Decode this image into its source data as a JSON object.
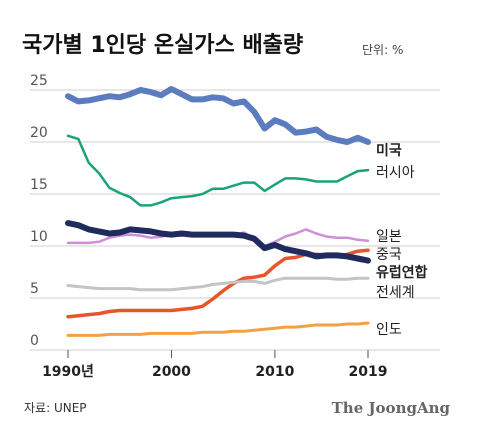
{
  "chart_data": {
    "type": "line",
    "title": "국가별 1인당 온실가스 배출량",
    "unit_label": "단위: %",
    "x_tick_labels": [
      "1990년",
      "2000",
      "2010",
      "2019"
    ],
    "x_tick_values": [
      1990,
      2000,
      2010,
      2019
    ],
    "y_tick_labels": [
      "0",
      "5",
      "10",
      "15",
      "20",
      "25"
    ],
    "y_tick_values": [
      0,
      5,
      10,
      15,
      20,
      25
    ],
    "xlim": [
      1990,
      2019
    ],
    "ylim": [
      0,
      25
    ],
    "grid": true,
    "years": [
      1990,
      1991,
      1992,
      1993,
      1994,
      1995,
      1996,
      1997,
      1998,
      1999,
      2000,
      2001,
      2002,
      2003,
      2004,
      2005,
      2006,
      2007,
      2008,
      2009,
      2010,
      2011,
      2012,
      2013,
      2014,
      2015,
      2016,
      2017,
      2018,
      2019
    ],
    "series": [
      {
        "name": "미국",
        "color": "#5b7dbf",
        "bold": true,
        "width": 6,
        "values": [
          24.4,
          23.9,
          24.0,
          24.2,
          24.4,
          24.3,
          24.6,
          25.0,
          24.8,
          24.5,
          25.1,
          24.6,
          24.1,
          24.1,
          24.3,
          24.2,
          23.7,
          23.9,
          22.9,
          21.3,
          22.1,
          21.7,
          20.9,
          21.0,
          21.2,
          20.5,
          20.2,
          20.0,
          20.4,
          20.0
        ]
      },
      {
        "name": "러시아",
        "color": "#1aa37a",
        "bold": false,
        "width": 2.5,
        "values": [
          20.6,
          20.3,
          18.0,
          17.0,
          15.6,
          15.1,
          14.7,
          13.9,
          13.9,
          14.2,
          14.6,
          14.7,
          14.8,
          15.0,
          15.5,
          15.5,
          15.8,
          16.1,
          16.1,
          15.3,
          15.9,
          16.5,
          16.5,
          16.4,
          16.2,
          16.2,
          16.2,
          16.7,
          17.2,
          17.3
        ]
      },
      {
        "name": "일본",
        "color": "#cd90d6",
        "bold": false,
        "width": 2.5,
        "values": [
          10.3,
          10.3,
          10.3,
          10.4,
          10.8,
          11.0,
          11.1,
          11.0,
          10.8,
          10.9,
          11.1,
          11.0,
          11.1,
          11.1,
          11.1,
          11.1,
          11.0,
          11.3,
          10.7,
          10.0,
          10.4,
          10.9,
          11.2,
          11.6,
          11.2,
          10.9,
          10.8,
          10.8,
          10.6,
          10.5
        ]
      },
      {
        "name": "중국",
        "color": "#e8552a",
        "bold": false,
        "width": 3.5,
        "values": [
          3.2,
          3.3,
          3.4,
          3.5,
          3.7,
          3.8,
          3.8,
          3.8,
          3.8,
          3.8,
          3.8,
          3.9,
          4.0,
          4.2,
          4.9,
          5.7,
          6.4,
          6.9,
          7.0,
          7.2,
          8.1,
          8.8,
          8.9,
          9.2,
          9.2,
          9.1,
          9.0,
          9.2,
          9.5,
          9.6
        ]
      },
      {
        "name": "유럽연합",
        "color": "#1f2a5e",
        "bold": true,
        "width": 6,
        "values": [
          12.2,
          12.0,
          11.6,
          11.4,
          11.2,
          11.3,
          11.6,
          11.5,
          11.4,
          11.2,
          11.1,
          11.2,
          11.1,
          11.1,
          11.1,
          11.1,
          11.1,
          11.0,
          10.7,
          9.8,
          10.1,
          9.7,
          9.5,
          9.3,
          9.0,
          9.1,
          9.1,
          9.0,
          8.8,
          8.6
        ]
      },
      {
        "name": "전세계",
        "color": "#c4c4c4",
        "bold": false,
        "width": 3,
        "values": [
          6.2,
          6.1,
          6.0,
          5.9,
          5.9,
          5.9,
          5.9,
          5.8,
          5.8,
          5.8,
          5.8,
          5.9,
          6.0,
          6.1,
          6.3,
          6.4,
          6.5,
          6.6,
          6.6,
          6.4,
          6.7,
          6.9,
          6.9,
          6.9,
          6.9,
          6.9,
          6.8,
          6.8,
          6.9,
          6.9
        ]
      },
      {
        "name": "인도",
        "color": "#f5a042",
        "bold": false,
        "width": 3,
        "values": [
          1.4,
          1.4,
          1.4,
          1.4,
          1.5,
          1.5,
          1.5,
          1.5,
          1.6,
          1.6,
          1.6,
          1.6,
          1.6,
          1.7,
          1.7,
          1.7,
          1.8,
          1.8,
          1.9,
          2.0,
          2.1,
          2.2,
          2.2,
          2.3,
          2.4,
          2.4,
          2.4,
          2.5,
          2.5,
          2.6
        ]
      }
    ]
  },
  "footer": {
    "source": "자료: UNEP",
    "brand": "The JoongAng"
  }
}
